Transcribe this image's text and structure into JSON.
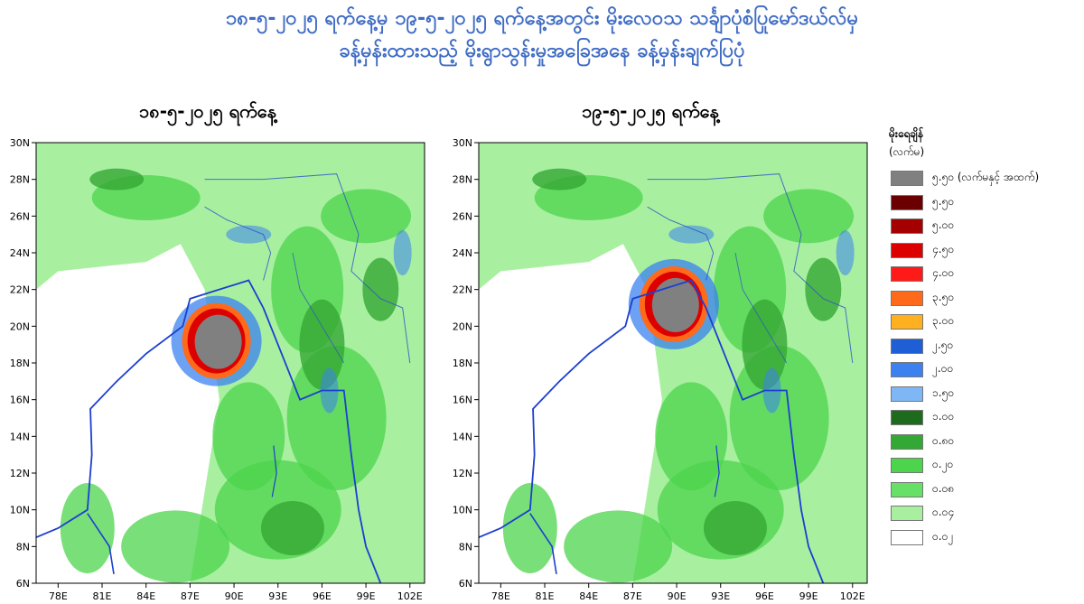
{
  "title": {
    "line1": "၁၈-၅-၂၀၂၅ ရက်နေ့မှ ၁၉-၅-၂၀၂၅ ရက်နေ့အတွင်း မိုးလေဝသ သင်္ချာပုံစံပြုမော်ဒယ်လ်မှ",
    "line2": "ခန့်မှန်းထားသည့် မိုးရွာသွန်းမှုအခြေအနေ ခန့်မှန်းချက်ပြပုံ"
  },
  "maps": [
    {
      "date": "၁၈-၅-၂၀၂၅ ရက်နေ့",
      "heavy_rain_center": {
        "lon": 88.8,
        "lat": 19.2
      }
    },
    {
      "date": "၁၉-၅-၂၀၂၅ ရက်နေ့",
      "heavy_rain_center": {
        "lon": 89.8,
        "lat": 21.2
      }
    }
  ],
  "axes": {
    "x_ticks": [
      "78E",
      "81E",
      "84E",
      "87E",
      "90E",
      "93E",
      "96E",
      "99E",
      "102E"
    ],
    "y_ticks": [
      "6N",
      "8N",
      "10N",
      "12N",
      "14N",
      "16N",
      "18N",
      "20N",
      "22N",
      "24N",
      "26N",
      "28N",
      "30N"
    ]
  },
  "legend": {
    "title": "မိုးရေချိန်",
    "unit": "(လက်မ)",
    "items": [
      {
        "label": "၅.၅၀ (လက်မနှင့် အထက်)",
        "color": "#808080"
      },
      {
        "label": "၅.၅၀",
        "color": "#6b0000"
      },
      {
        "label": "၅.၀၀",
        "color": "#a50000"
      },
      {
        "label": "၄.၅၀",
        "color": "#dc0000"
      },
      {
        "label": "၄.၀၀",
        "color": "#ff1a1a"
      },
      {
        "label": "၃.၅၀",
        "color": "#ff6a1a"
      },
      {
        "label": "၃.၀၀",
        "color": "#ffb020"
      },
      {
        "label": "၂.၅၀",
        "color": "#1f5fd6"
      },
      {
        "label": "၂.၀၀",
        "color": "#3b82f0"
      },
      {
        "label": "၁.၅၀",
        "color": "#7fb6f5"
      },
      {
        "label": "၁.၀၀",
        "color": "#1d6b1d"
      },
      {
        "label": "၀.၈၀",
        "color": "#34a834"
      },
      {
        "label": "၀.၂၀",
        "color": "#4cd44c"
      },
      {
        "label": "၀.၀၈",
        "color": "#66e066"
      },
      {
        "label": "၀.၀၄",
        "color": "#a8f0a0"
      },
      {
        "label": "၀.၀၂",
        "color": "#ffffff"
      }
    ]
  }
}
